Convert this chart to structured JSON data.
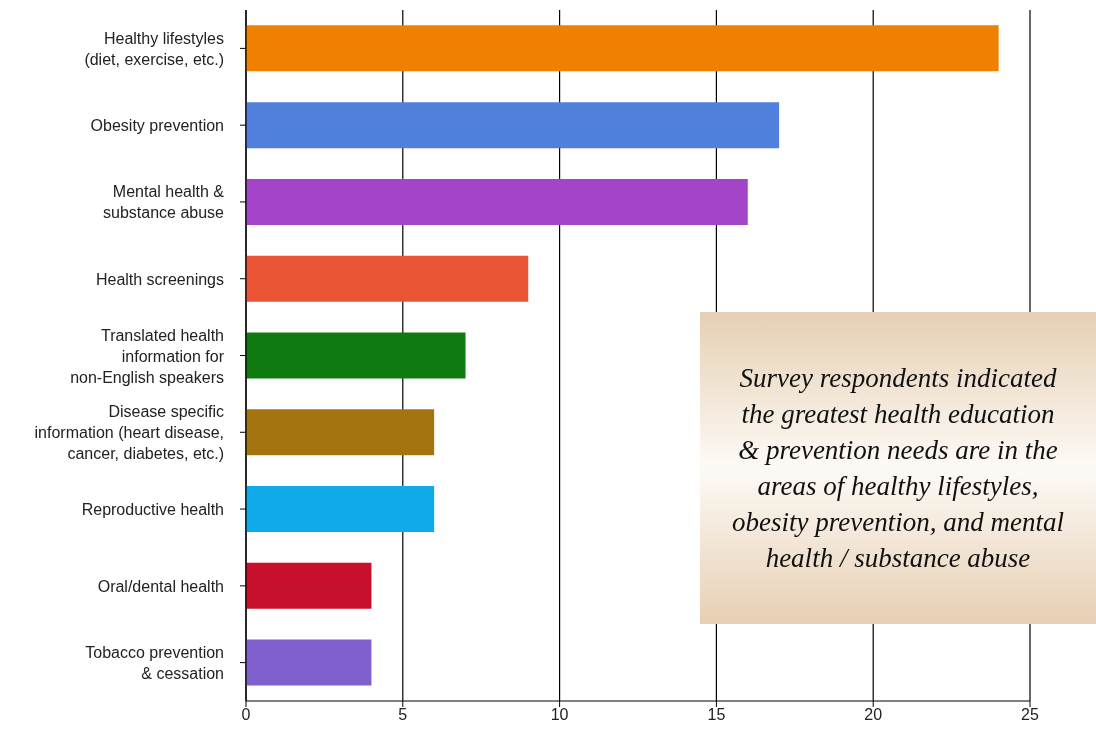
{
  "chart_data": {
    "type": "bar",
    "orientation": "horizontal",
    "categories": [
      "Healthy lifestyles\n(diet, exercise, etc.)",
      "Obesity prevention",
      "Mental health &\nsubstance abuse",
      "Health screenings",
      "Translated health\ninformation for\nnon-English speakers",
      "Disease specific\ninformation (heart disease,\ncancer, diabetes, etc.)",
      "Reproductive health",
      "Oral/dental health",
      "Tobacco prevention\n& cessation"
    ],
    "values": [
      24,
      17,
      16,
      9,
      7,
      6,
      6,
      4,
      4
    ],
    "colors": [
      "#f08000",
      "#5080dc",
      "#a444c8",
      "#e85434",
      "#0e7a10",
      "#a47410",
      "#10aaea",
      "#c8102c",
      "#8060cc"
    ],
    "xlim": [
      0,
      25
    ],
    "xticks": [
      0,
      5,
      10,
      15,
      20,
      25
    ],
    "grid": "x",
    "annotations": [
      "Survey respondents indicated the greatest health education & prevention needs are in the areas of healthy lifestyles, obesity prevention, and mental health / substance abuse"
    ]
  }
}
